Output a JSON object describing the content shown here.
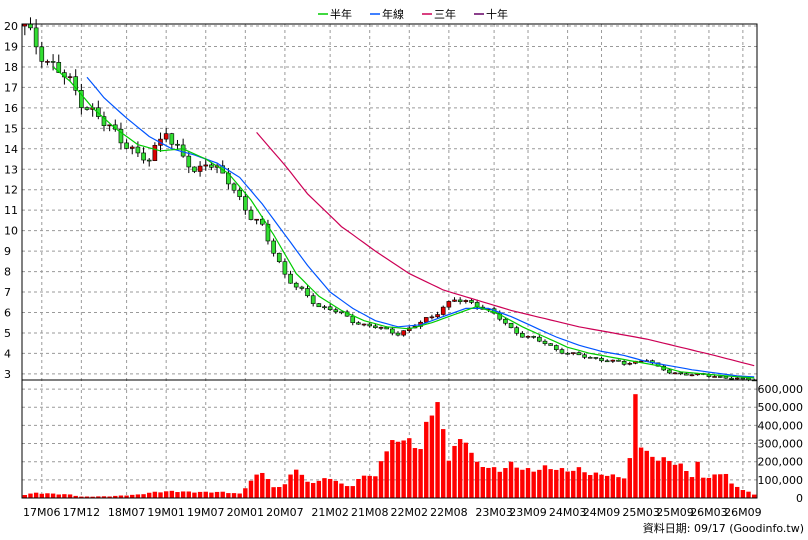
{
  "legend": [
    {
      "label": "半年",
      "color": "#00cc00"
    },
    {
      "label": "年線",
      "color": "#0055ff"
    },
    {
      "label": "三年",
      "color": "#cc0055"
    },
    {
      "label": "十年",
      "color": "#660066"
    }
  ],
  "footer": {
    "text": "資料日期: 09/17  (Goodinfo.tw)"
  },
  "chart_data": {
    "type": "candlestick+line+bar",
    "price_axis": {
      "ticks": [
        3,
        4,
        5,
        6,
        7,
        8,
        9,
        10,
        11,
        12,
        13,
        14,
        15,
        16,
        17,
        18,
        19,
        20
      ],
      "ylim": [
        2.7,
        20.1
      ]
    },
    "volume_axis": {
      "ticks": [
        "0",
        "100,000",
        "200,000",
        "300,000",
        "400,000",
        "500,000",
        "600,000"
      ],
      "ylim": [
        0,
        650000
      ]
    },
    "x_labels": [
      "17M06",
      "17M12",
      "18M07",
      "19M01",
      "19M07",
      "20M01",
      "20M07",
      "21M02",
      "21M08",
      "22M02",
      "22M08",
      "23M03",
      "23M09",
      "24M03",
      "24M09",
      "25M03",
      "25M09",
      "26M03",
      "26M09"
    ],
    "x_label_index": [
      3,
      10,
      18,
      25,
      32,
      39,
      46,
      54,
      61,
      68,
      75,
      83,
      89,
      96,
      102,
      109,
      115,
      121,
      127
    ],
    "periods": 130,
    "close_anchors": [
      [
        0,
        19.9
      ],
      [
        2,
        19.1
      ],
      [
        4,
        18.3
      ],
      [
        6,
        17.8
      ],
      [
        8,
        17.2
      ],
      [
        10,
        16.4
      ],
      [
        12,
        15.8
      ],
      [
        14,
        15.2
      ],
      [
        16,
        14.8
      ],
      [
        18,
        14.3
      ],
      [
        20,
        13.6
      ],
      [
        22,
        13.4
      ],
      [
        24,
        14.6
      ],
      [
        25,
        15.1
      ],
      [
        26,
        14.2
      ],
      [
        28,
        13.6
      ],
      [
        30,
        12.8
      ],
      [
        32,
        13.5
      ],
      [
        34,
        12.9
      ],
      [
        36,
        12.4
      ],
      [
        38,
        11.6
      ],
      [
        40,
        10.7
      ],
      [
        42,
        10.1
      ],
      [
        44,
        9.0
      ],
      [
        46,
        7.9
      ],
      [
        48,
        7.2
      ],
      [
        50,
        6.8
      ],
      [
        52,
        6.3
      ],
      [
        54,
        6.2
      ],
      [
        56,
        5.9
      ],
      [
        58,
        5.6
      ],
      [
        60,
        5.4
      ],
      [
        62,
        5.3
      ],
      [
        64,
        5.1
      ],
      [
        66,
        5.0
      ],
      [
        68,
        5.2
      ],
      [
        70,
        5.5
      ],
      [
        72,
        5.8
      ],
      [
        74,
        6.3
      ],
      [
        76,
        6.6
      ],
      [
        78,
        6.5
      ],
      [
        80,
        6.4
      ],
      [
        82,
        6.1
      ],
      [
        84,
        5.7
      ],
      [
        86,
        5.2
      ],
      [
        88,
        4.9
      ],
      [
        90,
        4.7
      ],
      [
        92,
        4.5
      ],
      [
        94,
        4.2
      ],
      [
        96,
        4.0
      ],
      [
        98,
        3.9
      ],
      [
        100,
        3.8
      ],
      [
        102,
        3.7
      ],
      [
        104,
        3.6
      ],
      [
        106,
        3.5
      ],
      [
        108,
        3.6
      ],
      [
        110,
        3.7
      ],
      [
        112,
        3.3
      ],
      [
        114,
        3.1
      ],
      [
        116,
        3.0
      ],
      [
        118,
        2.95
      ],
      [
        120,
        2.95
      ],
      [
        122,
        2.9
      ],
      [
        124,
        2.8
      ],
      [
        126,
        2.75
      ],
      [
        129,
        2.75
      ]
    ],
    "half_year_ma_anchors": [
      [
        5,
        18.0
      ],
      [
        8,
        17.3
      ],
      [
        12,
        16.0
      ],
      [
        16,
        15.0
      ],
      [
        20,
        14.2
      ],
      [
        24,
        13.9
      ],
      [
        28,
        14.0
      ],
      [
        32,
        13.5
      ],
      [
        36,
        12.8
      ],
      [
        40,
        11.5
      ],
      [
        44,
        9.8
      ],
      [
        48,
        7.9
      ],
      [
        52,
        6.8
      ],
      [
        56,
        6.1
      ],
      [
        60,
        5.6
      ],
      [
        64,
        5.3
      ],
      [
        68,
        5.2
      ],
      [
        72,
        5.5
      ],
      [
        76,
        5.9
      ],
      [
        80,
        6.3
      ],
      [
        84,
        5.9
      ],
      [
        88,
        5.3
      ],
      [
        92,
        4.8
      ],
      [
        96,
        4.3
      ],
      [
        100,
        4.0
      ],
      [
        104,
        3.8
      ],
      [
        108,
        3.6
      ],
      [
        112,
        3.4
      ],
      [
        116,
        3.1
      ],
      [
        120,
        3.0
      ],
      [
        124,
        2.9
      ],
      [
        129,
        2.8
      ]
    ],
    "year_ma_anchors": [
      [
        11,
        17.5
      ],
      [
        14,
        16.5
      ],
      [
        18,
        15.5
      ],
      [
        22,
        14.6
      ],
      [
        26,
        14.0
      ],
      [
        30,
        13.7
      ],
      [
        34,
        13.3
      ],
      [
        38,
        12.6
      ],
      [
        42,
        11.3
      ],
      [
        46,
        9.8
      ],
      [
        50,
        8.3
      ],
      [
        54,
        7.0
      ],
      [
        58,
        6.2
      ],
      [
        62,
        5.6
      ],
      [
        66,
        5.3
      ],
      [
        70,
        5.4
      ],
      [
        74,
        5.8
      ],
      [
        78,
        6.2
      ],
      [
        82,
        6.2
      ],
      [
        86,
        5.8
      ],
      [
        90,
        5.3
      ],
      [
        94,
        4.8
      ],
      [
        98,
        4.4
      ],
      [
        102,
        4.1
      ],
      [
        106,
        3.9
      ],
      [
        110,
        3.6
      ],
      [
        114,
        3.4
      ],
      [
        118,
        3.2
      ],
      [
        122,
        3.05
      ],
      [
        126,
        2.9
      ],
      [
        129,
        2.85
      ]
    ],
    "three_year_ma_anchors": [
      [
        41,
        14.8
      ],
      [
        46,
        13.2
      ],
      [
        50,
        11.8
      ],
      [
        56,
        10.2
      ],
      [
        62,
        9.0
      ],
      [
        68,
        7.9
      ],
      [
        74,
        7.1
      ],
      [
        80,
        6.6
      ],
      [
        86,
        6.1
      ],
      [
        92,
        5.7
      ],
      [
        98,
        5.3
      ],
      [
        104,
        5.0
      ],
      [
        110,
        4.7
      ],
      [
        116,
        4.3
      ],
      [
        122,
        3.9
      ],
      [
        129,
        3.4
      ]
    ],
    "volume_anchors": [
      [
        0,
        20000
      ],
      [
        2,
        30000
      ],
      [
        5,
        25000
      ],
      [
        8,
        20000
      ],
      [
        10,
        8000
      ],
      [
        15,
        10000
      ],
      [
        20,
        20000
      ],
      [
        23,
        35000
      ],
      [
        26,
        40000
      ],
      [
        30,
        35000
      ],
      [
        35,
        35000
      ],
      [
        38,
        25000
      ],
      [
        40,
        100000
      ],
      [
        42,
        160000
      ],
      [
        44,
        60000
      ],
      [
        46,
        80000
      ],
      [
        48,
        180000
      ],
      [
        50,
        90000
      ],
      [
        52,
        100000
      ],
      [
        54,
        120000
      ],
      [
        56,
        80000
      ],
      [
        58,
        70000
      ],
      [
        60,
        140000
      ],
      [
        62,
        120000
      ],
      [
        63,
        230000
      ],
      [
        65,
        320000
      ],
      [
        66,
        350000
      ],
      [
        68,
        330000
      ],
      [
        70,
        290000
      ],
      [
        71,
        420000
      ],
      [
        72,
        510000
      ],
      [
        73,
        570000
      ],
      [
        74,
        380000
      ],
      [
        75,
        230000
      ],
      [
        76,
        310000
      ],
      [
        78,
        340000
      ],
      [
        80,
        200000
      ],
      [
        82,
        180000
      ],
      [
        84,
        160000
      ],
      [
        86,
        200000
      ],
      [
        88,
        170000
      ],
      [
        90,
        160000
      ],
      [
        92,
        180000
      ],
      [
        94,
        170000
      ],
      [
        96,
        160000
      ],
      [
        98,
        170000
      ],
      [
        100,
        140000
      ],
      [
        102,
        140000
      ],
      [
        104,
        130000
      ],
      [
        106,
        120000
      ],
      [
        107,
        220000
      ],
      [
        108,
        620000
      ],
      [
        109,
        310000
      ],
      [
        110,
        260000
      ],
      [
        112,
        230000
      ],
      [
        114,
        220000
      ],
      [
        116,
        190000
      ],
      [
        118,
        130000
      ],
      [
        119,
        200000
      ],
      [
        120,
        120000
      ],
      [
        122,
        130000
      ],
      [
        124,
        150000
      ],
      [
        125,
        80000
      ],
      [
        127,
        50000
      ],
      [
        129,
        20000
      ]
    ]
  }
}
